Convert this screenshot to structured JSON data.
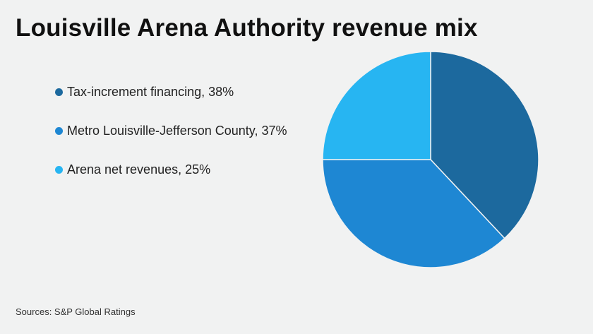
{
  "title": "Louisville Arena Authority revenue mix",
  "source": "Sources: S&P Global Ratings",
  "chart_data": {
    "type": "pie",
    "title": "Louisville Arena Authority revenue mix",
    "legend_position": "left",
    "slices": [
      {
        "label": "Tax-increment financing, 38%",
        "value": 38,
        "color": "#1c699e"
      },
      {
        "label": "Metro Louisville-Jefferson County, 37%",
        "value": 37,
        "color": "#1e87d3"
      },
      {
        "label": "Arena net revenues, 25%",
        "value": 25,
        "color": "#27b5f2"
      }
    ]
  }
}
